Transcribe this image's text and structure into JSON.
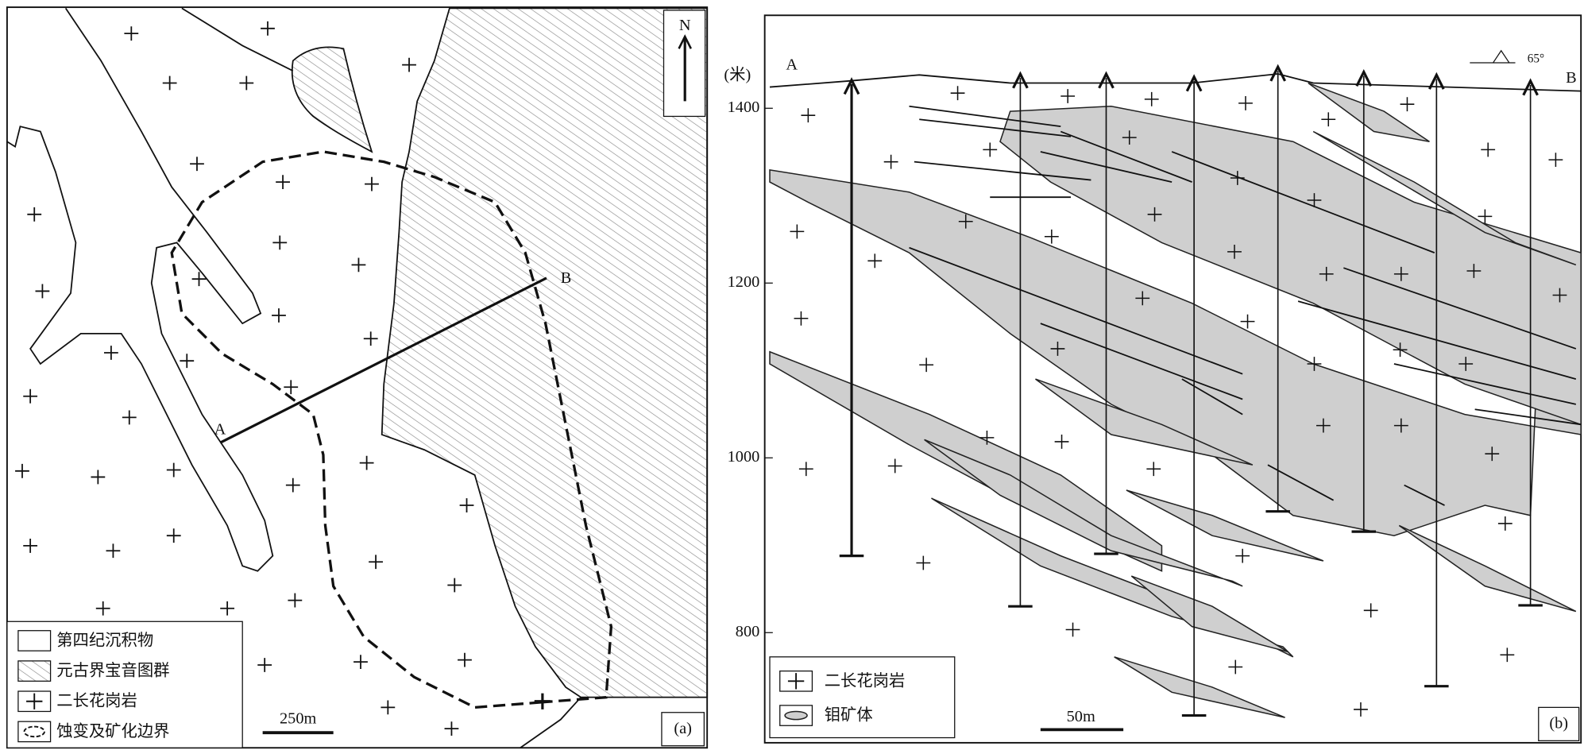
{
  "map": {
    "north": "N",
    "section_start": "A",
    "section_end": "B",
    "legend": [
      "第四纪沉积物",
      "元古界宝音图群",
      "二长花岗岩",
      "蚀变及矿化边界"
    ],
    "scale": "250m",
    "panel": "(a)"
  },
  "section": {
    "y_unit": "(米)",
    "yticks": [
      1400,
      1200,
      1000,
      800
    ],
    "start": "A",
    "end": "B",
    "dip": "65°",
    "legend": [
      "二长花岗岩",
      "钼矿体"
    ],
    "scale": "50m",
    "panel": "(b)"
  }
}
